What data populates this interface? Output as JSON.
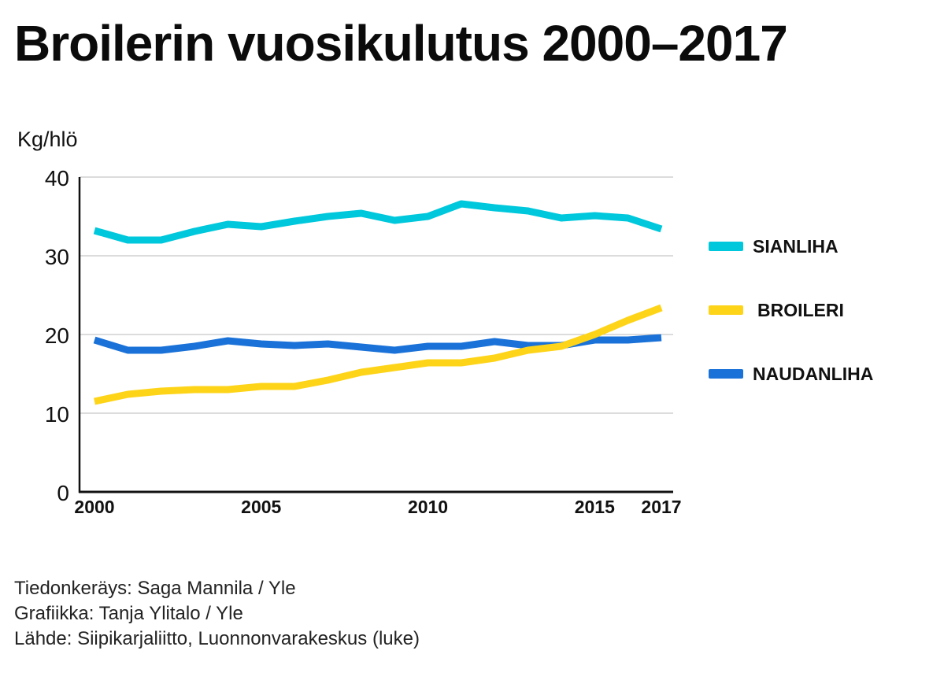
{
  "chart_data": {
    "type": "line",
    "title": "Broilerin vuosikulutus 2000–2017",
    "ylabel": "Kg/hlö",
    "xlabel": "",
    "xlim": [
      2000,
      2017
    ],
    "ylim": [
      0,
      40
    ],
    "yticks": [
      "0",
      "10",
      "20",
      "30",
      "40"
    ],
    "xticks": [
      "2000",
      "2005",
      "2010",
      "2015",
      "2017"
    ],
    "grid": true,
    "legend_position": "right",
    "x": [
      2000,
      2001,
      2002,
      2003,
      2004,
      2005,
      2006,
      2007,
      2008,
      2009,
      2010,
      2011,
      2012,
      2013,
      2014,
      2015,
      2016,
      2017
    ],
    "series": [
      {
        "name": "SIANLIHA",
        "color": "#00c8dc",
        "values": [
          33.2,
          32.0,
          32.0,
          33.1,
          34.0,
          33.7,
          34.4,
          35.0,
          35.4,
          34.5,
          35.0,
          36.6,
          36.1,
          35.7,
          34.8,
          35.1,
          34.8,
          33.4
        ]
      },
      {
        "name": "BROILERI",
        "color": "#fed419",
        "values": [
          11.5,
          12.4,
          12.8,
          13.0,
          13.0,
          13.4,
          13.4,
          14.2,
          15.2,
          15.8,
          16.4,
          16.4,
          17.0,
          18.0,
          18.5,
          20.0,
          21.8,
          23.4
        ]
      },
      {
        "name": "NAUDANLIHA",
        "color": "#1a72d8",
        "values": [
          19.3,
          18.0,
          18.0,
          18.5,
          19.2,
          18.8,
          18.6,
          18.8,
          18.4,
          18.0,
          18.5,
          18.5,
          19.1,
          18.6,
          18.6,
          19.3,
          19.3,
          19.6
        ]
      }
    ]
  },
  "credits": {
    "line1": "Tiedonkeräys: Saga Mannila / Yle",
    "line2": "Grafiikka: Tanja Ylitalo / Yle",
    "line3": "Lähde: Siipikarjaliitto, Luonnonvarakeskus (luke)"
  }
}
